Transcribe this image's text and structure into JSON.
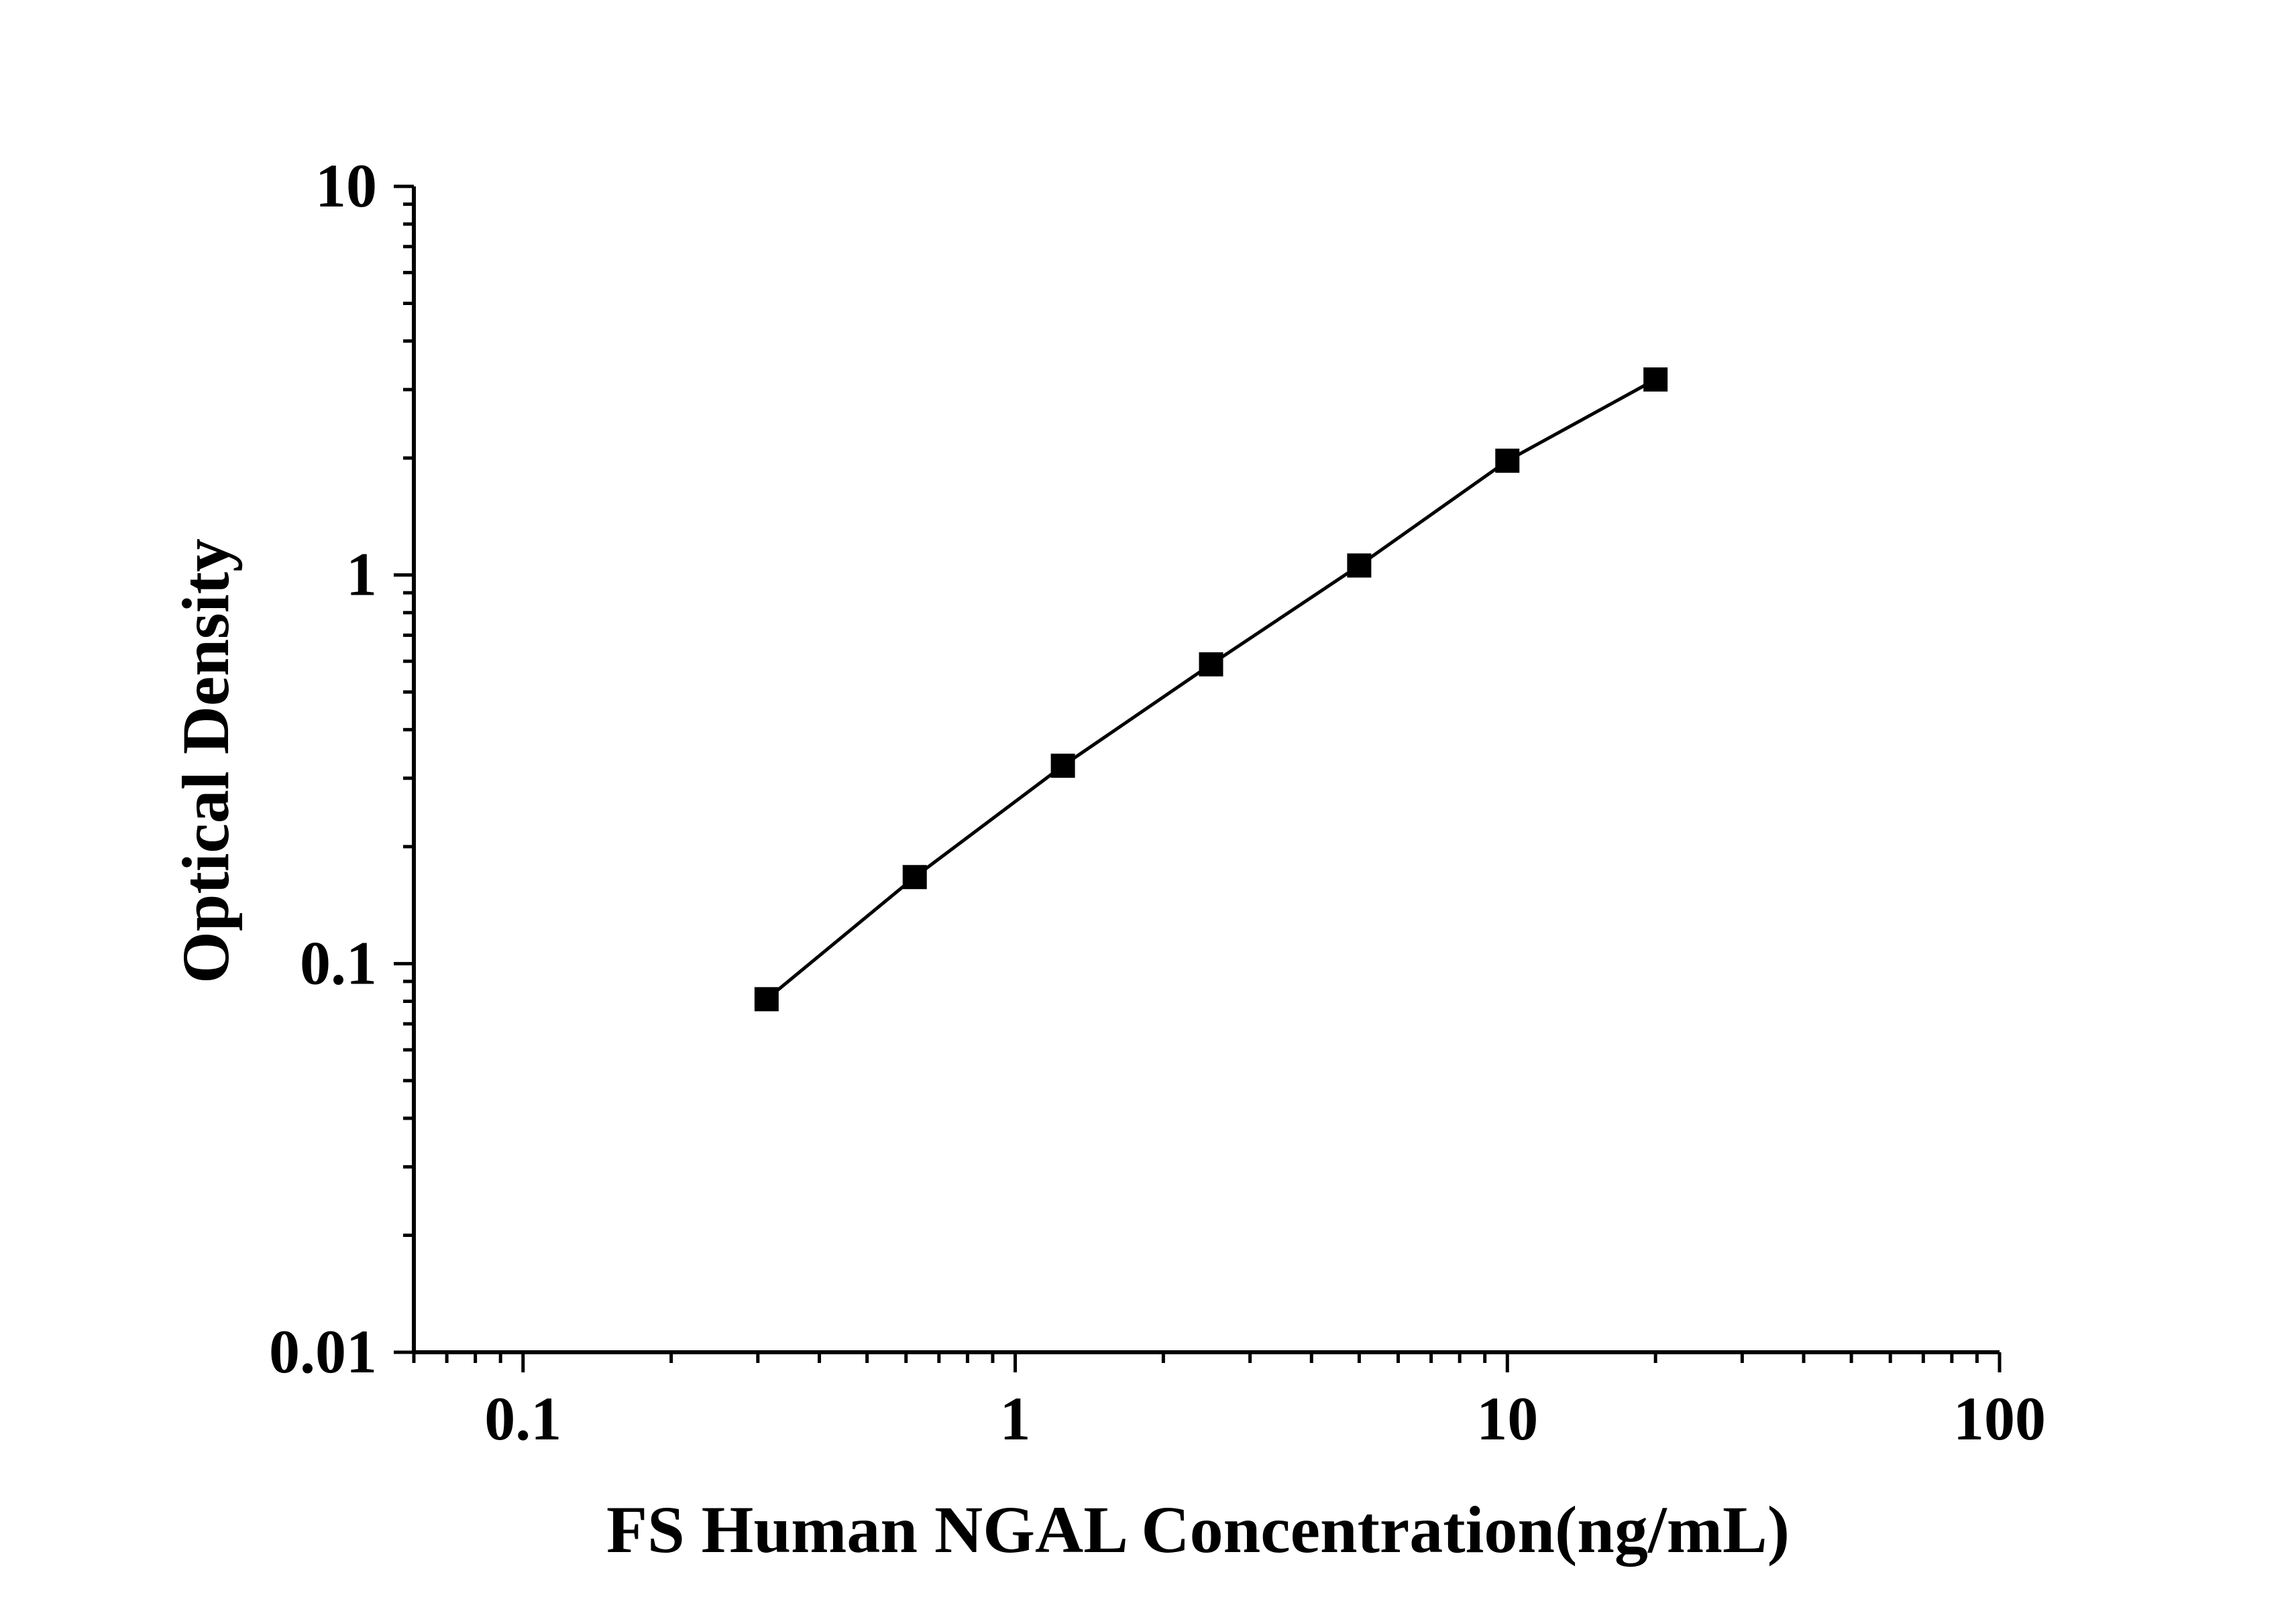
{
  "chart_data": {
    "type": "line",
    "title": "",
    "xlabel": "FS Human NGAL Concentration(ng/mL)",
    "ylabel": "Optical Density",
    "x_scale": "log",
    "y_scale": "log",
    "xlim": [
      0.06,
      100
    ],
    "ylim": [
      0.01,
      10
    ],
    "x_ticks": [
      {
        "value": 0.1,
        "label": "0.1"
      },
      {
        "value": 1,
        "label": "1"
      },
      {
        "value": 10,
        "label": "10"
      },
      {
        "value": 100,
        "label": "100"
      }
    ],
    "y_ticks": [
      {
        "value": 0.01,
        "label": "0.01"
      },
      {
        "value": 0.1,
        "label": "0.1"
      },
      {
        "value": 1,
        "label": "1"
      },
      {
        "value": 10,
        "label": "10"
      }
    ],
    "grid": false,
    "legend": "none",
    "series": [
      {
        "marker": "square",
        "color": "#000000",
        "x": [
          0.3125,
          0.625,
          1.25,
          2.5,
          5,
          10,
          20
        ],
        "y": [
          0.081,
          0.167,
          0.323,
          0.589,
          1.058,
          1.968,
          3.185
        ]
      }
    ]
  }
}
